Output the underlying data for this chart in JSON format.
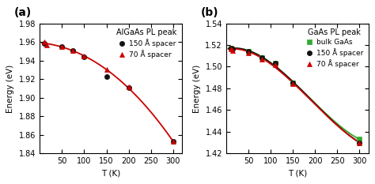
{
  "panel_a": {
    "label": "(a)",
    "xlabel": "T (K)",
    "ylabel": "Energy (eV)",
    "ylim": [
      1.84,
      1.98
    ],
    "xlim": [
      0,
      320
    ],
    "yticks": [
      1.84,
      1.86,
      1.88,
      1.9,
      1.92,
      1.94,
      1.96,
      1.98
    ],
    "xticks": [
      50,
      100,
      150,
      200,
      250,
      300
    ],
    "legend_title": "AlGaAs PL peak",
    "curve": {
      "T": [
        5,
        10,
        15,
        50,
        75,
        100,
        150,
        200,
        300
      ],
      "E": [
        1.96,
        1.958,
        1.957,
        1.955,
        1.951,
        1.945,
        1.929,
        1.911,
        1.853
      ],
      "color": "#cc0000",
      "linewidth": 1.3
    },
    "series": [
      {
        "label": "150 Å spacer",
        "T": [
          10,
          50,
          75,
          100,
          150,
          200,
          300
        ],
        "E": [
          1.958,
          1.955,
          1.951,
          1.944,
          1.923,
          1.911,
          1.853
        ],
        "color": "#111111",
        "marker": "o",
        "markersize": 4.5
      },
      {
        "label": "70 Å spacer",
        "T": [
          10,
          15,
          50,
          75,
          100,
          150,
          200,
          300
        ],
        "E": [
          1.96,
          1.957,
          1.955,
          1.951,
          1.945,
          1.93,
          1.912,
          1.853
        ],
        "color": "#cc0000",
        "marker": "^",
        "markersize": 4.5
      }
    ]
  },
  "panel_b": {
    "label": "(b)",
    "xlabel": "T (K)",
    "ylabel": "Energy (eV)",
    "ylim": [
      1.42,
      1.54
    ],
    "xlim": [
      0,
      320
    ],
    "yticks": [
      1.42,
      1.44,
      1.46,
      1.48,
      1.5,
      1.52,
      1.54
    ],
    "xticks": [
      50,
      100,
      150,
      200,
      250,
      300
    ],
    "legend_title": "GaAs PL peak",
    "curves": [
      {
        "T": [
          5,
          10,
          50,
          80,
          110,
          150,
          300
        ],
        "E": [
          1.517,
          1.517,
          1.514,
          1.508,
          1.503,
          1.485,
          1.433
        ],
        "color": "#33aa33",
        "linewidth": 1.3
      },
      {
        "T": [
          5,
          10,
          50,
          80,
          110,
          150,
          300
        ],
        "E": [
          1.517,
          1.517,
          1.514,
          1.508,
          1.503,
          1.485,
          1.43
        ],
        "color": "#111111",
        "linewidth": 1.3
      },
      {
        "T": [
          5,
          10,
          50,
          80,
          110,
          150,
          300
        ],
        "E": [
          1.517,
          1.516,
          1.513,
          1.507,
          1.502,
          1.484,
          1.43
        ],
        "color": "#cc0000",
        "linewidth": 1.3
      }
    ],
    "series": [
      {
        "label": "bulk GaAs",
        "T": [
          10,
          50,
          80,
          110,
          150,
          300
        ],
        "E": [
          1.517,
          1.514,
          1.508,
          1.503,
          1.485,
          1.433
        ],
        "color": "#33aa33",
        "marker": "s",
        "markersize": 4.5
      },
      {
        "label": "150 Å spacer",
        "T": [
          10,
          15,
          50,
          80,
          110,
          150,
          300
        ],
        "E": [
          1.517,
          1.516,
          1.514,
          1.508,
          1.503,
          1.485,
          1.43
        ],
        "color": "#111111",
        "marker": "o",
        "markersize": 4.5
      },
      {
        "label": "70 Å spacer",
        "T": [
          10,
          15,
          50,
          80,
          110,
          150,
          300
        ],
        "E": [
          1.516,
          1.515,
          1.513,
          1.507,
          1.502,
          1.484,
          1.43
        ],
        "color": "#cc0000",
        "marker": "^",
        "markersize": 4.5
      }
    ]
  },
  "bg_color": "#ffffff",
  "font_family": "DejaVu Sans"
}
